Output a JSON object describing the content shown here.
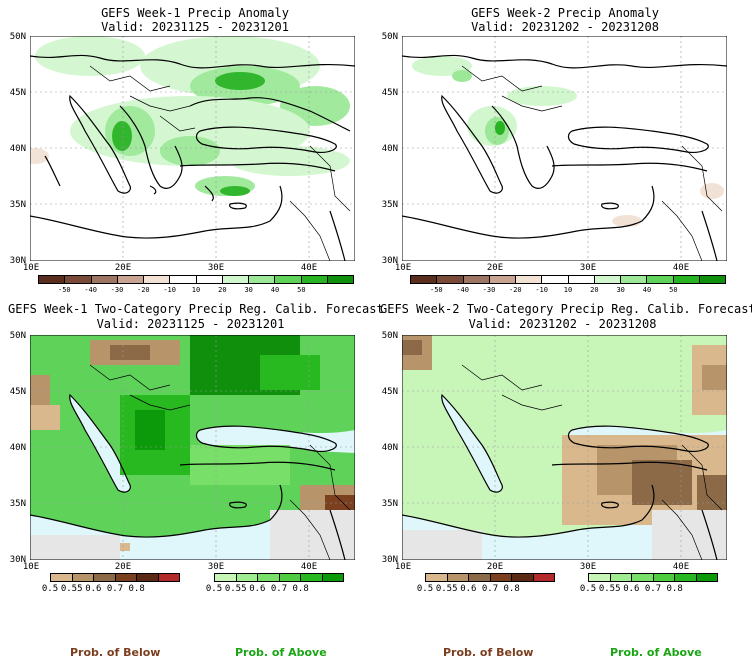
{
  "panels": [
    {
      "title": "GEFS Week-1 Precip Anomaly",
      "valid": "Valid: 20231125 - 20231201",
      "lat_labels": [
        "50N",
        "45N",
        "40N",
        "35N",
        "30N"
      ],
      "lon_labels": [
        "10E",
        "20E",
        "30E",
        "40E"
      ],
      "colorbar": {
        "ticks": [
          "-50",
          "-40",
          "-30",
          "-20",
          "-10",
          "10",
          "20",
          "30",
          "40",
          "50"
        ],
        "colors": [
          "#5a2e1e",
          "#7a4a38",
          "#9e7462",
          "#c9a493",
          "#f2e2d6",
          "#ffffff",
          "#ffffff",
          "#d2f7cf",
          "#9de898",
          "#5fd25a",
          "#27b322",
          "#0f8f0c"
        ]
      }
    },
    {
      "title": "GEFS Week-2 Precip Anomaly",
      "valid": "Valid: 20231202 - 20231208",
      "lat_labels": [
        "50N",
        "45N",
        "40N",
        "35N",
        "30N"
      ],
      "lon_labels": [
        "10E",
        "20E",
        "30E",
        "40E"
      ],
      "colorbar": {
        "ticks": [
          "-50",
          "-40",
          "-30",
          "-20",
          "-10",
          "10",
          "20",
          "30",
          "40",
          "50"
        ],
        "colors": [
          "#5a2e1e",
          "#7a4a38",
          "#9e7462",
          "#c9a493",
          "#f2e2d6",
          "#ffffff",
          "#ffffff",
          "#d2f7cf",
          "#9de898",
          "#5fd25a",
          "#27b322",
          "#0f8f0c"
        ]
      }
    },
    {
      "title": "GEFS Week-1 Two-Category Precip Reg. Calib. Forecast",
      "valid": "Valid: 20231125 - 20231201",
      "lat_labels": [
        "50N",
        "45N",
        "40N",
        "35N",
        "30N"
      ],
      "lon_labels": [
        "10E",
        "20E",
        "30E",
        "40E"
      ],
      "below_bar": {
        "ticks": [
          "0.5",
          "0.55",
          "0.6",
          "0.7",
          "0.8"
        ],
        "colors": [
          "#d8b88c",
          "#b8946a",
          "#8c6a48",
          "#7a4020",
          "#5a2a14",
          "#b22a2a"
        ]
      },
      "above_bar": {
        "ticks": [
          "0.5",
          "0.55",
          "0.6",
          "0.7",
          "0.8"
        ],
        "colors": [
          "#c8f5b8",
          "#a0ec90",
          "#78e068",
          "#50cc40",
          "#28b820",
          "#0d9a0a"
        ]
      },
      "below_caption": "Prob. of Below",
      "above_caption": "Prob. of Above"
    },
    {
      "title": "GEFS Week-2 Two-Category Precip Reg. Calib. Forecast",
      "valid": "Valid: 20231202 - 20231208",
      "lat_labels": [
        "50N",
        "45N",
        "40N",
        "35N",
        "30N"
      ],
      "lon_labels": [
        "10E",
        "20E",
        "30E",
        "40E"
      ],
      "below_bar": {
        "ticks": [
          "0.5",
          "0.55",
          "0.6",
          "0.7",
          "0.8"
        ],
        "colors": [
          "#d8b88c",
          "#b8946a",
          "#8c6a48",
          "#7a4020",
          "#5a2a14",
          "#b22a2a"
        ]
      },
      "above_bar": {
        "ticks": [
          "0.5",
          "0.55",
          "0.6",
          "0.7",
          "0.8"
        ],
        "colors": [
          "#c8f5b8",
          "#a0ec90",
          "#78e068",
          "#50cc40",
          "#28b820",
          "#0d9a0a"
        ]
      },
      "below_caption": "Prob. of Below",
      "above_caption": "Prob. of Above"
    }
  ],
  "colors": {
    "ocean": "#dff7fb",
    "nodata": "#e6e6e6",
    "land_wet_dark": "#0f8f0c",
    "land_wet": "#5fd25a",
    "land_wet_light": "#c8f5b8",
    "land_dry": "#d8b88c",
    "land_dry_dark": "#8c6a48",
    "below_caption": "#7a3e1e",
    "above_caption": "#1aa514"
  }
}
